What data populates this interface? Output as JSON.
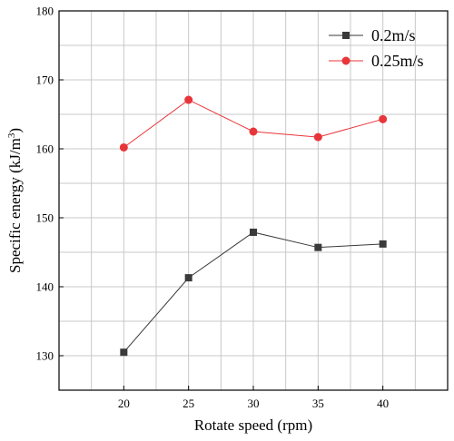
{
  "chart_data": {
    "type": "line",
    "xlabel": "Rotate speed (rpm)",
    "ylabel": "Specific energy (kJ/m",
    "ylabel_sup": "3",
    "ylabel_suffix": ")",
    "x": [
      20,
      25,
      30,
      35,
      40
    ],
    "xlim": [
      15,
      45
    ],
    "ylim": [
      125,
      180
    ],
    "xticks": [
      "20",
      "25",
      "30",
      "35",
      "40"
    ],
    "yticks": [
      "130",
      "140",
      "150",
      "160",
      "170",
      "180"
    ],
    "grid": true,
    "legend_position": "top-right",
    "series": [
      {
        "name": "0.2m/s",
        "values": [
          130.5,
          141.3,
          147.9,
          145.7,
          146.2
        ],
        "color": "#3a3a3a",
        "marker": "square"
      },
      {
        "name": "0.25m/s",
        "values": [
          160.2,
          167.1,
          162.5,
          161.7,
          164.3
        ],
        "color": "#e8353a",
        "marker": "circle"
      }
    ]
  }
}
